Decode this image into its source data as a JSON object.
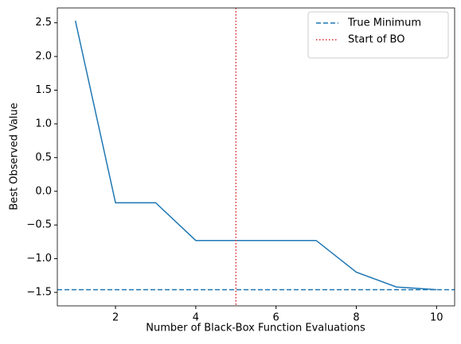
{
  "chart_data": {
    "type": "line",
    "xlabel": "Number of Black-Box Function Evaluations",
    "ylabel": "Best Observed Value",
    "x": [
      1,
      2,
      3,
      4,
      5,
      6,
      7,
      8,
      9,
      10
    ],
    "values": [
      2.53,
      -0.17,
      -0.17,
      -0.73,
      -0.73,
      -0.73,
      -0.73,
      -1.2,
      -1.42,
      -1.46
    ],
    "color": "#1f77b4",
    "xlim": [
      0.55,
      10.45
    ],
    "xticks": [
      2,
      4,
      6,
      8,
      10
    ],
    "ylim": [
      -1.7,
      2.72
    ],
    "yticks": [
      {
        "value": -1.5,
        "label": "−1.5"
      },
      {
        "value": -1.0,
        "label": "−1.0"
      },
      {
        "value": -0.5,
        "label": "−0.5"
      },
      {
        "value": 0,
        "label": "0.0"
      },
      0.5,
      {
        "value": 1.0,
        "label": "1.0"
      },
      1.5,
      {
        "value": 2.0,
        "label": "2.0"
      },
      2.5
    ],
    "reference_lines": [
      {
        "name": "True Minimum",
        "orientation": "horizontal",
        "value": -1.46,
        "color": "#1f77b4",
        "style": "dashed"
      },
      {
        "name": "Start of BO",
        "orientation": "vertical",
        "value": 5,
        "color": "#d62728",
        "style": "dotted"
      }
    ],
    "legend": "upper right"
  }
}
